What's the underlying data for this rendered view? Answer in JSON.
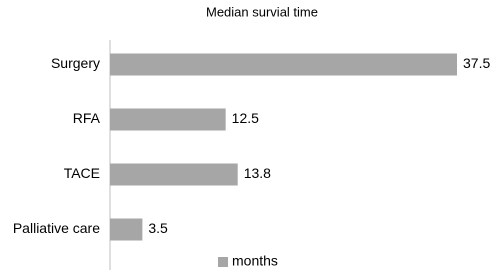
{
  "chart_data": {
    "type": "bar",
    "orientation": "horizontal",
    "title": "Median survial time",
    "categories": [
      "Surgery",
      "RFA",
      "TACE",
      "Palliative care"
    ],
    "series": [
      {
        "name": "months",
        "color": "#a6a6a6",
        "values": [
          37.5,
          12.5,
          13.8,
          3.5
        ]
      }
    ],
    "legend": "bottom"
  }
}
